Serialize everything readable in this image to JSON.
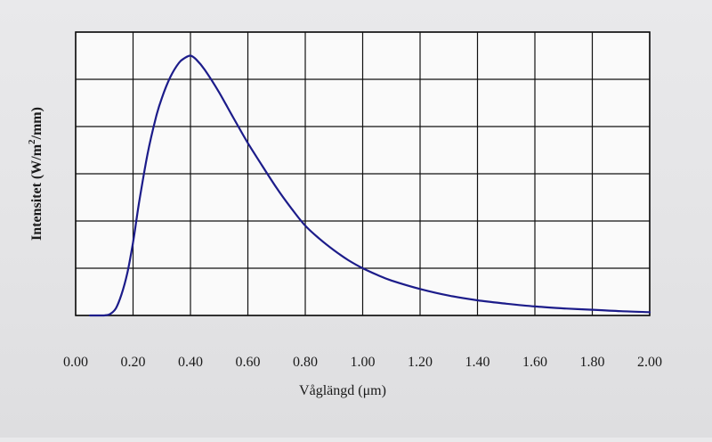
{
  "chart_data": {
    "type": "line",
    "xlabel": "Våglängd (μm)",
    "ylabel": {
      "prefix": "Intensitet (W/m",
      "superscript": "2",
      "suffix": "/mm)"
    },
    "xlim": [
      0,
      2.0
    ],
    "ylim": [
      0,
      6
    ],
    "x_ticks": [
      "0.00",
      "0.20",
      "0.40",
      "0.60",
      "0.80",
      "1.00",
      "1.20",
      "1.40",
      "1.60",
      "1.80",
      "2.00"
    ],
    "x_tick_values": [
      0,
      0.2,
      0.4,
      0.6,
      0.8,
      1.0,
      1.2,
      1.4,
      1.6,
      1.8,
      2.0
    ],
    "x_grid_values": [
      0,
      0.2,
      0.4,
      0.6,
      0.8,
      1.0,
      1.2,
      1.4,
      1.6,
      1.8,
      2.0
    ],
    "y_grid_values": [
      0,
      1,
      2,
      3,
      4,
      5,
      6
    ],
    "grid": true,
    "line_color": "#1c1c8a",
    "grid_color": "#111111",
    "series": [
      {
        "x": [
          0.1,
          0.12,
          0.14,
          0.16,
          0.18,
          0.2,
          0.22,
          0.25,
          0.28,
          0.3,
          0.33,
          0.36,
          0.38,
          0.4,
          0.42,
          0.45,
          0.5,
          0.55,
          0.6,
          0.65,
          0.7,
          0.75,
          0.8,
          0.85,
          0.9,
          0.95,
          1.0,
          1.05,
          1.1,
          1.2,
          1.3,
          1.4,
          1.5,
          1.6,
          1.7,
          1.8,
          1.9,
          2.0
        ],
        "y": [
          0.0,
          0.03,
          0.15,
          0.45,
          0.9,
          1.55,
          2.35,
          3.4,
          4.2,
          4.6,
          5.05,
          5.35,
          5.45,
          5.5,
          5.42,
          5.2,
          4.72,
          4.18,
          3.65,
          3.17,
          2.7,
          2.28,
          1.9,
          1.62,
          1.38,
          1.17,
          1.0,
          0.86,
          0.74,
          0.56,
          0.42,
          0.32,
          0.25,
          0.19,
          0.15,
          0.12,
          0.09,
          0.07
        ]
      }
    ]
  }
}
